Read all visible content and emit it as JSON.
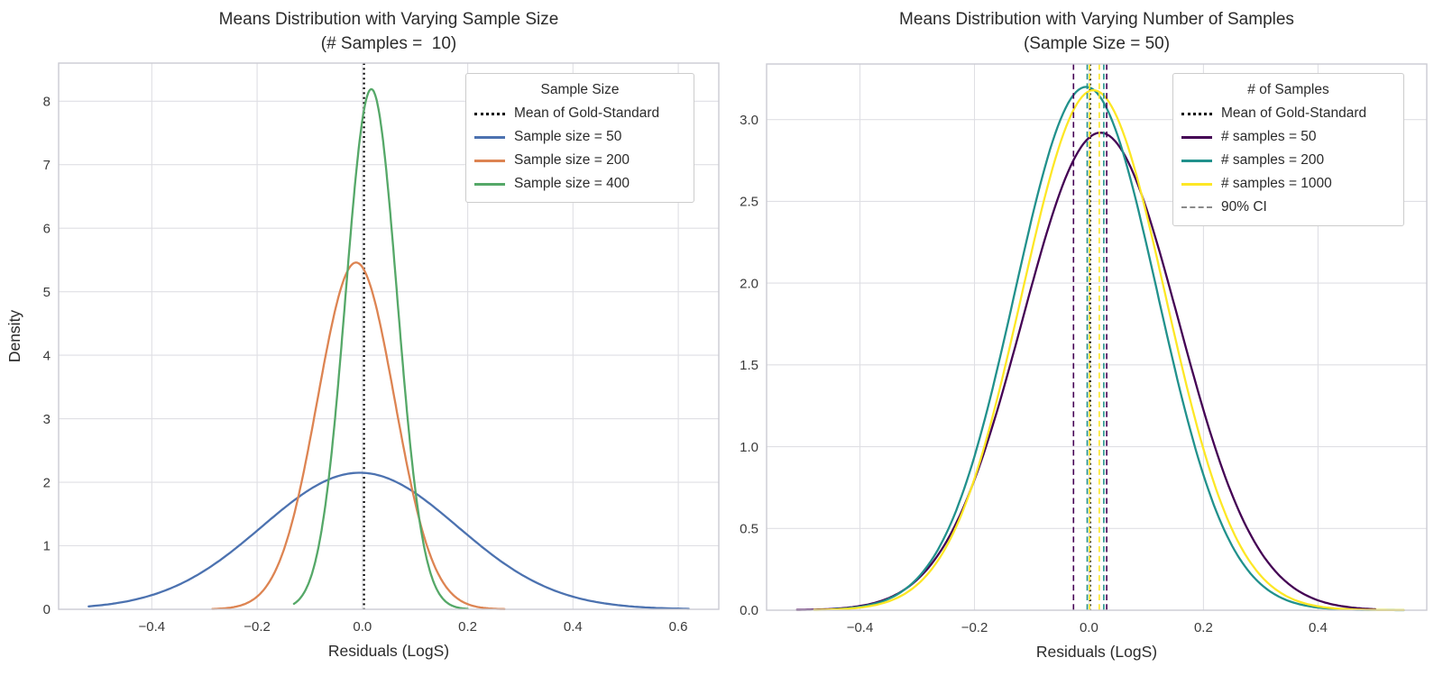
{
  "figure": {
    "background": "#ffffff",
    "grid_color": "#dfdfe4",
    "spine_color": "#cbcbd2",
    "title_color": "#2b2b2b",
    "tick_color": "#3a3a3a"
  },
  "chart_data": [
    {
      "type": "line",
      "title": "Means Distribution with Varying Sample Size",
      "subtitle": "(# Samples =  10)",
      "xlabel": "Residuals (LogS)",
      "ylabel": "Density",
      "xlim": [
        -0.577,
        0.677
      ],
      "ylim": [
        0,
        8.6
      ],
      "grid": true,
      "legend_position": "upper right",
      "legend_title": "Sample Size",
      "xticks": [
        {
          "v": -0.4,
          "label": "−0.4"
        },
        {
          "v": -0.2,
          "label": "−0.2"
        },
        {
          "v": 0.0,
          "label": "0.0"
        },
        {
          "v": 0.2,
          "label": "0.2"
        },
        {
          "v": 0.4,
          "label": "0.4"
        },
        {
          "v": 0.6,
          "label": "0.6"
        }
      ],
      "yticks": [
        {
          "v": 0,
          "label": "0"
        },
        {
          "v": 1,
          "label": "1"
        },
        {
          "v": 2,
          "label": "2"
        },
        {
          "v": 3,
          "label": "3"
        },
        {
          "v": 4,
          "label": "4"
        },
        {
          "v": 5,
          "label": "5"
        },
        {
          "v": 6,
          "label": "6"
        },
        {
          "v": 7,
          "label": "7"
        },
        {
          "v": 8,
          "label": "8"
        }
      ],
      "vlines": [
        {
          "x": 0.003,
          "color": "#000000",
          "style": "dotted",
          "layer": "below",
          "name": "gold-standard-mean"
        }
      ],
      "series": [
        {
          "name": "Sample size = 50",
          "color": "#4C72B0",
          "shape": "gaussian-kde",
          "mean": -0.005,
          "peak_density": 2.15,
          "sigma": 0.1856,
          "x_range": [
            -0.52,
            0.62
          ]
        },
        {
          "name": "Sample size = 200",
          "color": "#DD8452",
          "shape": "gaussian-kde",
          "mean": -0.012,
          "peak_density": 5.46,
          "sigma": 0.0731,
          "x_range": [
            -0.285,
            0.27
          ]
        },
        {
          "name": "Sample size = 400",
          "color": "#55A868",
          "shape": "gaussian-kde",
          "mean": 0.017,
          "peak_density": 8.19,
          "sigma": 0.0487,
          "x_range": [
            -0.13,
            0.2
          ]
        }
      ],
      "legend": [
        {
          "label": "Mean of Gold-Standard",
          "color": "#000000",
          "style": "dotted"
        },
        {
          "label": "Sample size = 50",
          "color": "#4C72B0",
          "style": "solid"
        },
        {
          "label": "Sample size = 200",
          "color": "#DD8452",
          "style": "solid"
        },
        {
          "label": "Sample size = 400",
          "color": "#55A868",
          "style": "solid"
        }
      ]
    },
    {
      "type": "line",
      "title": "Means Distribution with Varying Number of Samples",
      "subtitle": "(Sample Size = 50)",
      "xlabel": "Residuals (LogS)",
      "ylabel": "",
      "xlim": [
        -0.563,
        0.59
      ],
      "ylim": [
        0,
        3.34
      ],
      "grid": true,
      "legend_position": "upper right",
      "legend_title": "# of Samples",
      "xticks": [
        {
          "v": -0.4,
          "label": "−0.4"
        },
        {
          "v": -0.2,
          "label": "−0.2"
        },
        {
          "v": 0.0,
          "label": "0.0"
        },
        {
          "v": 0.2,
          "label": "0.2"
        },
        {
          "v": 0.4,
          "label": "0.4"
        }
      ],
      "yticks": [
        {
          "v": 0.0,
          "label": "0.0"
        },
        {
          "v": 0.5,
          "label": "0.5"
        },
        {
          "v": 1.0,
          "label": "1.0"
        },
        {
          "v": 1.5,
          "label": "1.5"
        },
        {
          "v": 2.0,
          "label": "2.0"
        },
        {
          "v": 2.5,
          "label": "2.5"
        },
        {
          "v": 3.0,
          "label": "3.0"
        }
      ],
      "vlines": [
        {
          "x": 0.002,
          "color": "#000000",
          "style": "dotted",
          "layer": "below",
          "name": "gold-standard-mean"
        },
        {
          "x": -0.027,
          "color": "#440154",
          "style": "dashed",
          "layer": "above",
          "name": "ci-90-samples-50-lower"
        },
        {
          "x": 0.031,
          "color": "#440154",
          "style": "dashed",
          "layer": "above",
          "name": "ci-90-samples-50-upper"
        },
        {
          "x": -0.003,
          "color": "#21918C",
          "style": "dashed",
          "layer": "above",
          "name": "ci-90-samples-200-lower"
        },
        {
          "x": 0.026,
          "color": "#21918C",
          "style": "dashed",
          "layer": "above",
          "name": "ci-90-samples-200-upper"
        },
        {
          "x": 0.001,
          "color": "#FDE725",
          "style": "dashed",
          "layer": "above",
          "name": "ci-90-samples-1000-lower"
        },
        {
          "x": 0.018,
          "color": "#FDE725",
          "style": "dashed",
          "layer": "above",
          "name": "ci-90-samples-1000-upper"
        }
      ],
      "series": [
        {
          "name": "# samples = 50",
          "color": "#440154",
          "shape": "gaussian-kde",
          "mean": 0.02,
          "peak_density": 2.92,
          "sigma": 0.1365,
          "x_range": [
            -0.51,
            0.5
          ]
        },
        {
          "name": "# samples = 200",
          "color": "#21918C",
          "shape": "gaussian-kde",
          "mean": -0.005,
          "peak_density": 3.2,
          "sigma": 0.1246,
          "x_range": [
            -0.45,
            0.55
          ]
        },
        {
          "name": "# samples = 1000",
          "color": "#FDE725",
          "shape": "gaussian-kde",
          "mean": 0.008,
          "peak_density": 3.18,
          "sigma": 0.1254,
          "x_range": [
            -0.48,
            0.55
          ]
        }
      ],
      "legend": [
        {
          "label": "Mean of Gold-Standard",
          "color": "#000000",
          "style": "dotted"
        },
        {
          "label": "# samples = 50",
          "color": "#440154",
          "style": "solid"
        },
        {
          "label": "# samples = 200",
          "color": "#21918C",
          "style": "solid"
        },
        {
          "label": "# samples = 1000",
          "color": "#FDE725",
          "style": "solid"
        },
        {
          "label": "90% CI",
          "color": "#8a8a8a",
          "style": "dashed"
        }
      ]
    }
  ]
}
